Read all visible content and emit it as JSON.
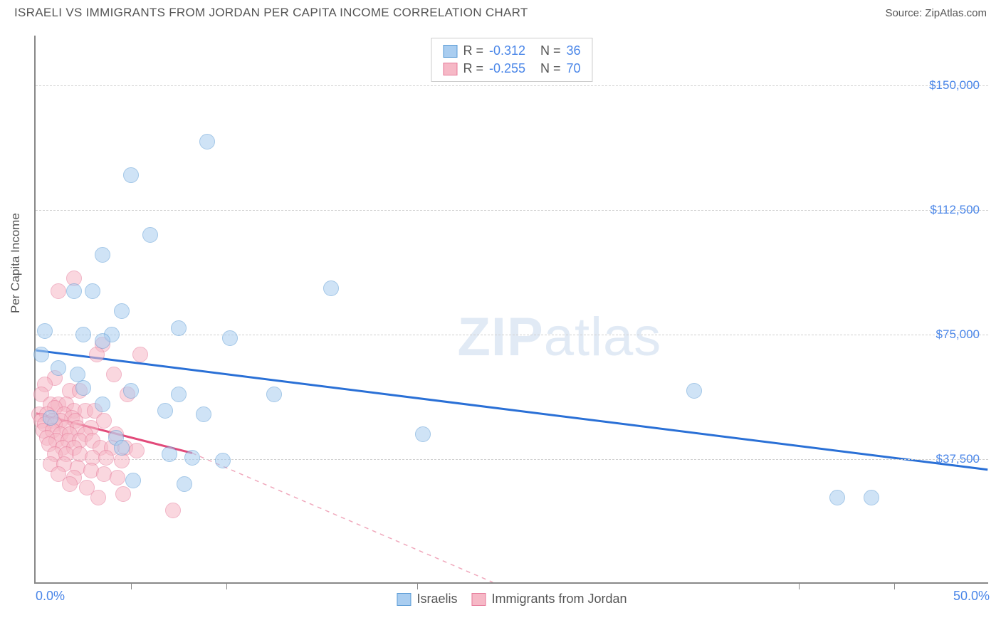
{
  "title": "ISRAELI VS IMMIGRANTS FROM JORDAN PER CAPITA INCOME CORRELATION CHART",
  "source": "Source: ZipAtlas.com",
  "ylabel": "Per Capita Income",
  "watermark_bold": "ZIP",
  "watermark_light": "atlas",
  "chart": {
    "type": "scatter",
    "xlim": [
      0,
      50
    ],
    "ylim": [
      0,
      165000
    ],
    "x_ticks_major": [
      0,
      50
    ],
    "x_ticks_minor": [
      5,
      10,
      20,
      40,
      45
    ],
    "x_tick_labels": {
      "0": "0.0%",
      "50": "50.0%"
    },
    "y_gridlines": [
      37500,
      75000,
      112500,
      150000
    ],
    "y_tick_labels": {
      "37500": "$37,500",
      "75000": "$75,000",
      "112500": "$112,500",
      "150000": "$150,000"
    },
    "background_color": "#ffffff",
    "grid_color": "#d0d0d0",
    "axis_color": "#888888",
    "label_fontsize": 17,
    "tick_fontsize": 17,
    "tick_color": "#4a86e8"
  },
  "series": [
    {
      "name": "Israelis",
      "label": "Israelis",
      "fill_color": "#a9cdf0",
      "stroke_color": "#5a9bd5",
      "marker_radius": 11,
      "fill_opacity": 0.55,
      "R": "-0.312",
      "N": "36",
      "trend": {
        "x1": 0,
        "y1": 70000,
        "x2": 50,
        "y2": 34000,
        "color": "#2a70d6",
        "width": 3,
        "dash": "none"
      },
      "points": [
        [
          9.0,
          133000
        ],
        [
          5.0,
          123000
        ],
        [
          6.0,
          105000
        ],
        [
          3.5,
          99000
        ],
        [
          15.5,
          89000
        ],
        [
          2.0,
          88000
        ],
        [
          3.0,
          88000
        ],
        [
          4.5,
          82000
        ],
        [
          0.5,
          76000
        ],
        [
          2.5,
          75000
        ],
        [
          4.0,
          75000
        ],
        [
          7.5,
          77000
        ],
        [
          10.2,
          74000
        ],
        [
          3.5,
          73000
        ],
        [
          0.3,
          69000
        ],
        [
          1.2,
          65000
        ],
        [
          2.5,
          59000
        ],
        [
          5.0,
          58000
        ],
        [
          7.5,
          57000
        ],
        [
          12.5,
          57000
        ],
        [
          34.5,
          58000
        ],
        [
          3.5,
          54000
        ],
        [
          6.8,
          52000
        ],
        [
          8.8,
          51000
        ],
        [
          0.8,
          50000
        ],
        [
          20.3,
          45000
        ],
        [
          4.2,
          44000
        ],
        [
          4.5,
          41000
        ],
        [
          7.0,
          39000
        ],
        [
          8.2,
          38000
        ],
        [
          9.8,
          37000
        ],
        [
          5.1,
          31000
        ],
        [
          7.8,
          30000
        ],
        [
          42.0,
          26000
        ],
        [
          43.8,
          26000
        ],
        [
          2.2,
          63000
        ]
      ]
    },
    {
      "name": "Immigrants from Jordan",
      "label": "Immigrants from Jordan",
      "fill_color": "#f6b8c6",
      "stroke_color": "#e67a9a",
      "marker_radius": 11,
      "fill_opacity": 0.55,
      "R": "-0.255",
      "N": "70",
      "trend_solid": {
        "x1": 0,
        "y1": 51000,
        "x2": 8.2,
        "y2": 39000,
        "color": "#e24a7a",
        "width": 3
      },
      "trend_dash": {
        "x1": 8.2,
        "y1": 39000,
        "x2": 24,
        "y2": 0,
        "color": "#f0a8bc",
        "width": 1.5
      },
      "points": [
        [
          2.0,
          92000
        ],
        [
          1.2,
          88000
        ],
        [
          3.5,
          72000
        ],
        [
          3.2,
          69000
        ],
        [
          5.5,
          69000
        ],
        [
          4.1,
          63000
        ],
        [
          1.0,
          62000
        ],
        [
          0.5,
          60000
        ],
        [
          1.8,
          58000
        ],
        [
          2.3,
          58000
        ],
        [
          0.3,
          57000
        ],
        [
          4.8,
          57000
        ],
        [
          0.8,
          54000
        ],
        [
          1.2,
          54000
        ],
        [
          1.6,
          54000
        ],
        [
          1.0,
          53000
        ],
        [
          2.0,
          52000
        ],
        [
          2.6,
          52000
        ],
        [
          3.1,
          52000
        ],
        [
          0.2,
          51000
        ],
        [
          0.6,
          51000
        ],
        [
          1.5,
          51000
        ],
        [
          1.9,
          50000
        ],
        [
          0.3,
          49000
        ],
        [
          0.9,
          49000
        ],
        [
          1.3,
          49000
        ],
        [
          2.1,
          49000
        ],
        [
          3.6,
          49000
        ],
        [
          0.5,
          48000
        ],
        [
          1.0,
          48000
        ],
        [
          1.6,
          47000
        ],
        [
          2.2,
          47000
        ],
        [
          2.9,
          47000
        ],
        [
          0.4,
          46000
        ],
        [
          0.9,
          46000
        ],
        [
          1.3,
          45000
        ],
        [
          1.8,
          45000
        ],
        [
          2.6,
          45000
        ],
        [
          4.2,
          45000
        ],
        [
          0.6,
          44000
        ],
        [
          1.1,
          43000
        ],
        [
          1.7,
          43000
        ],
        [
          2.3,
          43000
        ],
        [
          3.0,
          43000
        ],
        [
          0.7,
          42000
        ],
        [
          1.4,
          41000
        ],
        [
          2.0,
          41000
        ],
        [
          3.4,
          41000
        ],
        [
          4.0,
          41000
        ],
        [
          4.7,
          41000
        ],
        [
          5.3,
          40000
        ],
        [
          1.0,
          39000
        ],
        [
          1.6,
          39000
        ],
        [
          2.3,
          39000
        ],
        [
          3.0,
          38000
        ],
        [
          3.7,
          38000
        ],
        [
          4.5,
          37000
        ],
        [
          0.8,
          36000
        ],
        [
          1.5,
          36000
        ],
        [
          2.2,
          35000
        ],
        [
          2.9,
          34000
        ],
        [
          3.6,
          33000
        ],
        [
          1.2,
          33000
        ],
        [
          2.0,
          32000
        ],
        [
          4.3,
          32000
        ],
        [
          1.8,
          30000
        ],
        [
          2.7,
          29000
        ],
        [
          3.3,
          26000
        ],
        [
          4.6,
          27000
        ],
        [
          7.2,
          22000
        ]
      ]
    }
  ],
  "stats_labels": {
    "R": "R =",
    "N": "N ="
  }
}
